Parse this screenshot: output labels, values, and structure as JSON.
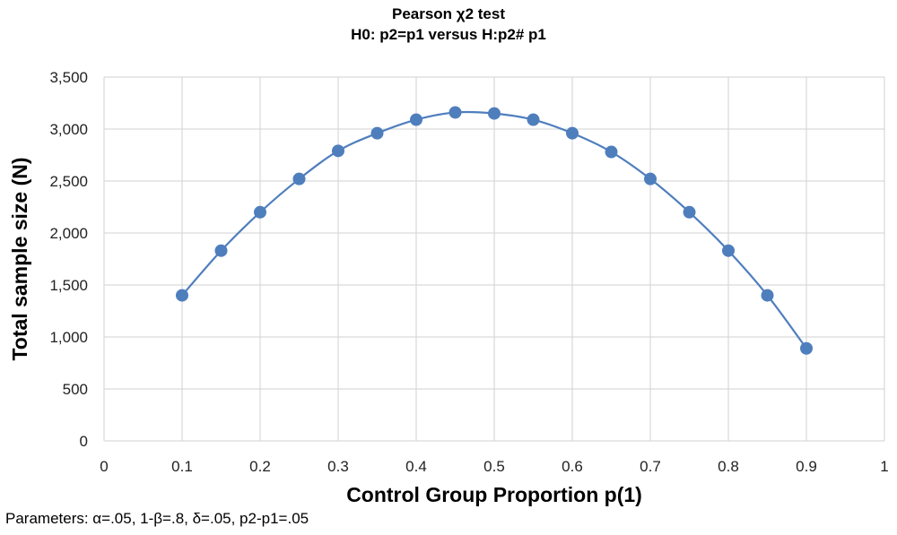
{
  "title": {
    "line1": "Pearson χ2 test",
    "line2": "H0: p2=p1 versus H:p2# p1"
  },
  "caption": "Parameters: α=.05, 1-β=.8, δ=.05, p2-p1=.05",
  "colors": {
    "series": "#4f7ebd",
    "grid": "#d9d9d9"
  },
  "chart_data": {
    "type": "line",
    "xlabel": "Control Group Proportion p(1)",
    "ylabel": "Total sample size (N)",
    "xlim": [
      0,
      1
    ],
    "ylim": [
      0,
      3500
    ],
    "x_ticks": [
      "0",
      "0.1",
      "0.2",
      "0.3",
      "0.4",
      "0.5",
      "0.6",
      "0.7",
      "0.8",
      "0.9",
      "1"
    ],
    "y_ticks": [
      "0",
      "500",
      "1,000",
      "1,500",
      "2,000",
      "2,500",
      "3,000",
      "3,500"
    ],
    "grid": true,
    "legend": "none",
    "series": [
      {
        "x": [
          0.1,
          0.15,
          0.2,
          0.25,
          0.3,
          0.35,
          0.4,
          0.45,
          0.5,
          0.55,
          0.6,
          0.65,
          0.7,
          0.75,
          0.8,
          0.85,
          0.9
        ],
        "y": [
          1400,
          1830,
          2200,
          2520,
          2790,
          2960,
          3090,
          3160,
          3150,
          3090,
          2960,
          2780,
          2520,
          2200,
          1830,
          1400,
          890
        ]
      }
    ]
  }
}
